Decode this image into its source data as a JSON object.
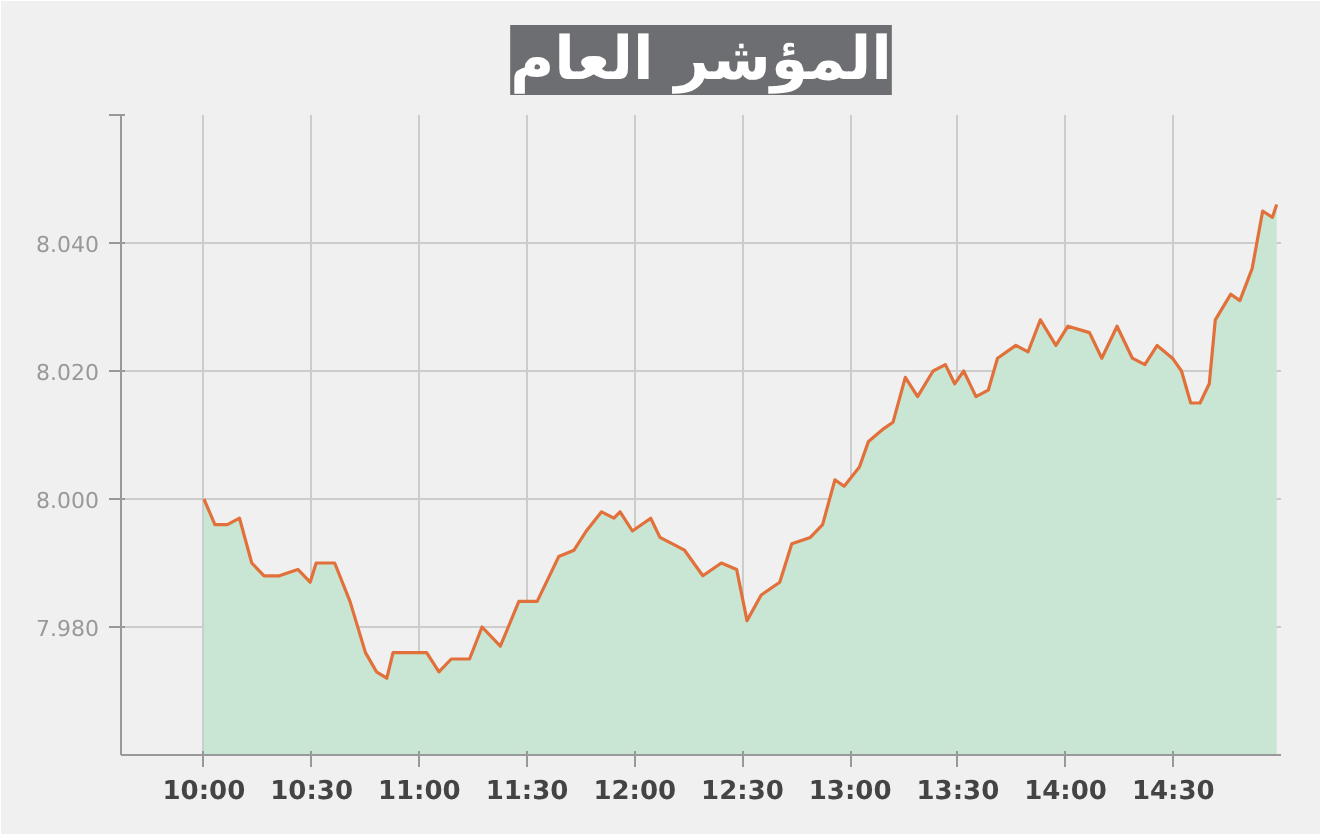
{
  "chart_data": {
    "type": "area",
    "title": "المؤشر العام",
    "x": [
      10.0,
      10.051,
      10.109,
      10.165,
      10.222,
      10.279,
      10.35,
      10.436,
      10.493,
      10.521,
      10.607,
      10.678,
      10.75,
      10.801,
      10.849,
      10.878,
      10.949,
      11.034,
      11.091,
      11.148,
      11.233,
      11.291,
      11.376,
      11.462,
      11.547,
      11.647,
      11.718,
      11.775,
      11.846,
      11.903,
      11.932,
      11.989,
      12.074,
      12.117,
      12.231,
      12.316,
      12.402,
      12.473,
      12.521,
      12.587,
      12.673,
      12.729,
      12.815,
      12.872,
      12.929,
      12.972,
      13.043,
      13.085,
      13.156,
      13.199,
      13.256,
      13.313,
      13.385,
      13.442,
      13.485,
      13.527,
      13.584,
      13.641,
      13.684,
      13.769,
      13.826,
      13.883,
      13.955,
      14.011,
      14.111,
      14.168,
      14.239,
      14.31,
      14.368,
      14.425,
      14.496,
      14.538,
      14.581,
      14.624,
      14.667,
      14.695,
      14.767,
      14.809,
      14.866,
      14.915,
      14.96,
      14.98
    ],
    "series": [
      {
        "color": "#e2703a",
        "values": [
          8.0,
          7.996,
          7.996,
          7.997,
          7.99,
          7.988,
          7.988,
          7.989,
          7.987,
          7.99,
          7.99,
          7.984,
          7.976,
          7.973,
          7.972,
          7.976,
          7.976,
          7.976,
          7.973,
          7.975,
          7.975,
          7.98,
          7.977,
          7.984,
          7.984,
          7.991,
          7.992,
          7.995,
          7.998,
          7.997,
          7.998,
          7.995,
          7.997,
          7.994,
          7.992,
          7.988,
          7.99,
          7.989,
          7.981,
          7.985,
          7.987,
          7.993,
          7.994,
          7.996,
          8.003,
          8.002,
          8.005,
          8.009,
          8.011,
          8.012,
          8.019,
          8.016,
          8.02,
          8.021,
          8.018,
          8.02,
          8.016,
          8.017,
          8.022,
          8.024,
          8.023,
          8.028,
          8.024,
          8.027,
          8.026,
          8.022,
          8.027,
          8.022,
          8.021,
          8.024,
          8.022,
          8.02,
          8.015,
          8.015,
          8.018,
          8.028,
          8.032,
          8.031,
          8.036,
          8.045,
          8.044,
          8.046
        ]
      }
    ],
    "xlim": [
      9.615,
      15.0
    ],
    "xticks": [
      {
        "value": 10,
        "label": "10:00"
      },
      {
        "value": 10.5,
        "label": "10:30"
      },
      {
        "value": 11,
        "label": "11:00"
      },
      {
        "value": 11.5,
        "label": "11:30"
      },
      {
        "value": 12,
        "label": "12:00"
      },
      {
        "value": 12.5,
        "label": "12:30"
      },
      {
        "value": 13,
        "label": "13:00"
      },
      {
        "value": 13.5,
        "label": "13:30"
      },
      {
        "value": 14,
        "label": "14:00"
      },
      {
        "value": 14.5,
        "label": "14:30"
      }
    ],
    "ylim": [
      7.96,
      8.06
    ],
    "yticks": [
      {
        "value": 7.98,
        "label": "7.980"
      },
      {
        "value": 8.0,
        "label": "8.000"
      },
      {
        "value": 8.02,
        "label": "8.020"
      },
      {
        "value": 8.04,
        "label": "8.040"
      },
      {
        "value": 8.06,
        "label": null
      }
    ],
    "grid": true,
    "marker": "none",
    "line_style": "solid"
  }
}
